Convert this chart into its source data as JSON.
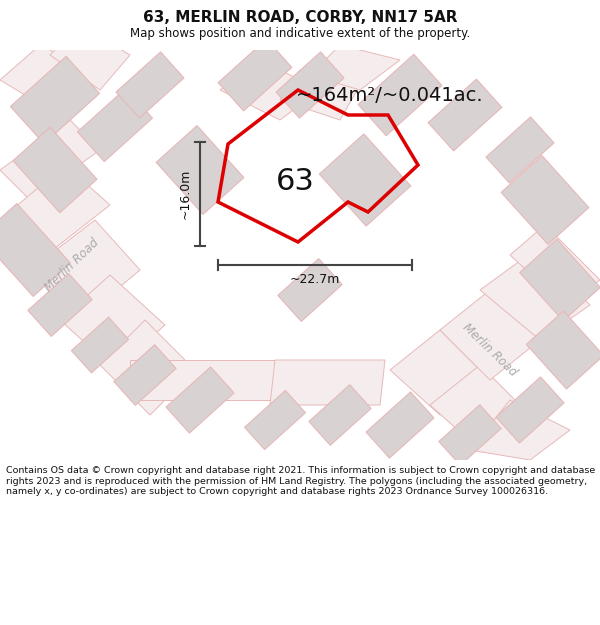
{
  "title": "63, MERLIN ROAD, CORBY, NN17 5AR",
  "subtitle": "Map shows position and indicative extent of the property.",
  "area_text": "~164m²/~0.041ac.",
  "label_63": "63",
  "dim_width": "~22.7m",
  "dim_height": "~16.0m",
  "footer": "Contains OS data © Crown copyright and database right 2021. This information is subject to Crown copyright and database rights 2023 and is reproduced with the permission of HM Land Registry. The polygons (including the associated geometry, namely x, y co-ordinates) are subject to Crown copyright and database rights 2023 Ordnance Survey 100026316.",
  "bg_color": "#ffffff",
  "map_bg": "#f7f4f4",
  "road_stroke": "#e8b8b8",
  "building_fill": "#d8d2d2",
  "building_stroke": "#e8b8b8",
  "highlight_color": "#dd0000",
  "dim_line_color": "#444444",
  "text_dark": "#111111",
  "text_gray": "#888888",
  "road_label_color": "#aaaaaa"
}
